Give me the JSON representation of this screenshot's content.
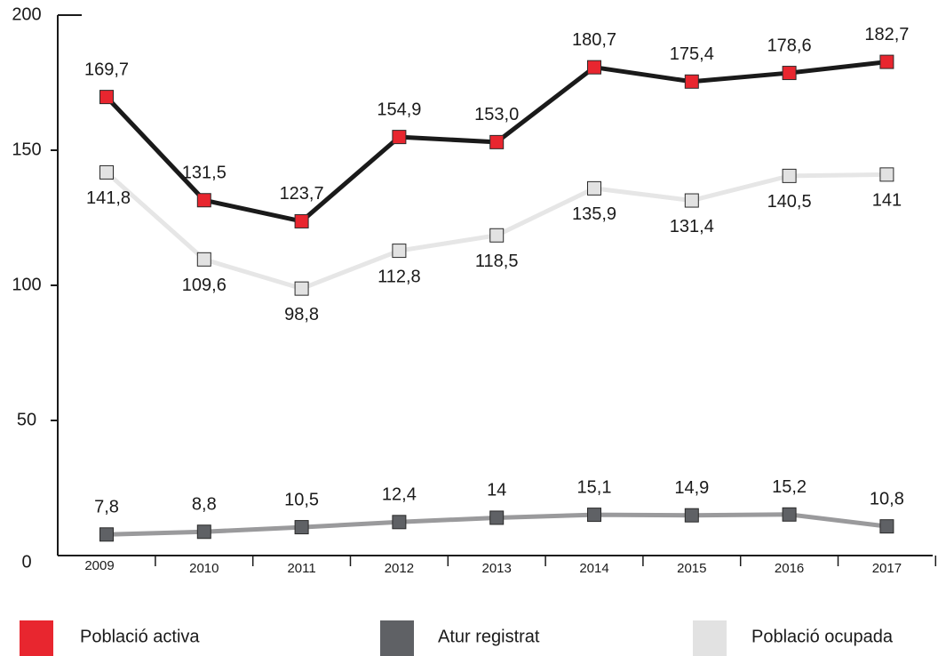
{
  "chart_data": {
    "type": "line",
    "categories": [
      "2009",
      "2010",
      "2011",
      "2012",
      "2013",
      "2014",
      "2015",
      "2016",
      "2017"
    ],
    "series": [
      {
        "name": "Població activa",
        "color": "#e8262f",
        "line_color": "#1a1a1a",
        "values": [
          169.7,
          131.5,
          123.7,
          154.9,
          153.0,
          180.7,
          175.4,
          178.6,
          182.7
        ],
        "value_labels": [
          "169,7",
          "131,5",
          "123,7",
          "154,9",
          "153,0",
          "180,7",
          "175,4",
          "178,6",
          "182,7"
        ]
      },
      {
        "name": "Atur registrat",
        "color": "#5f6165",
        "line_color": "#9a9a9c",
        "values": [
          7.8,
          8.8,
          10.5,
          12.4,
          14,
          15.1,
          14.9,
          15.2,
          10.8
        ],
        "value_labels": [
          "7,8",
          "8,8",
          "10,5",
          "12,4",
          "14",
          "15,1",
          "14,9",
          "15,2",
          "10,8"
        ]
      },
      {
        "name": "Població ocupada",
        "color": "#e2e2e2",
        "line_color": "#e6e6e6",
        "values": [
          141.8,
          109.6,
          98.8,
          112.8,
          118.5,
          135.9,
          131.4,
          140.5,
          141
        ],
        "value_labels": [
          "141,8",
          "109,6",
          "98,8",
          "112,8",
          "118,5",
          "135,9",
          "131,4",
          "140,5",
          "141"
        ]
      }
    ],
    "ylim": [
      0,
      200
    ],
    "yticks": [
      0,
      50,
      100,
      150,
      200
    ],
    "grid": false,
    "legend": "bottom"
  }
}
